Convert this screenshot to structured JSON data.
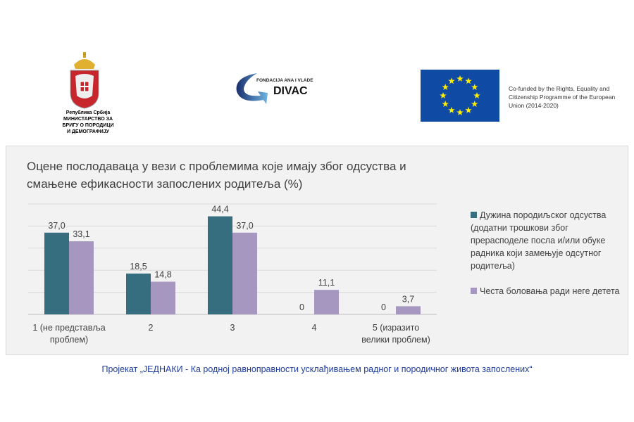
{
  "header": {
    "ministry_logo": {
      "icon": "serbia-coat-of-arms-icon",
      "lines": [
        "Република Србија",
        "МИНИСТАРСТВО ЗА",
        "БРИГУ О ПОРОДИЦИ",
        "И ДЕМОГРАФИЈУ"
      ]
    },
    "divac_logo": {
      "icon": "divac-foundation-arrow-icon",
      "line1": "FONDACIJA ANA I VLADE",
      "line2": "DIVAC"
    },
    "eu_flag": {
      "icon": "eu-flag-icon",
      "colors": {
        "blue": "#0f4aa5",
        "star": "#ffed00"
      }
    },
    "eu_text": "Co-funded by the Rights, Equality and Citizenship Programme of the European Union (2014-2020)"
  },
  "chart_data": {
    "type": "bar",
    "title": "Оцене послодаваца у вези с  проблемима које имају због одсуства и смањене ефикасности запослених родитеља (%)",
    "categories": [
      [
        "1 (не представља",
        "проблем)"
      ],
      [
        "2"
      ],
      [
        "3"
      ],
      [
        "4"
      ],
      [
        "5 (изразито",
        "велики проблем)"
      ]
    ],
    "series": [
      {
        "name": "Дужина породиљског одсуства (додатни трошкови због прерасподеле посла и/или обуке радника који замењује одсутног родитеља)",
        "values": [
          37.0,
          18.5,
          44.4,
          0,
          0
        ],
        "labels": [
          "37,0",
          "18,5",
          "44,4",
          "0",
          "0"
        ],
        "color": "#376e7f"
      },
      {
        "name": "Честа боловања ради неге детета",
        "values": [
          33.1,
          14.8,
          37.0,
          11.1,
          3.7
        ],
        "labels": [
          "33,1",
          "14,8",
          "37,0",
          "11,1",
          "3,7"
        ],
        "color": "#a597c0"
      }
    ],
    "ylim": [
      0,
      50
    ],
    "grid": true,
    "grid_step": 10,
    "legend": "right"
  },
  "footer": "Пројекат „ЈЕДНАКИ - Ка родној равноправности усклађивањем радног и породичног живота запослених“"
}
